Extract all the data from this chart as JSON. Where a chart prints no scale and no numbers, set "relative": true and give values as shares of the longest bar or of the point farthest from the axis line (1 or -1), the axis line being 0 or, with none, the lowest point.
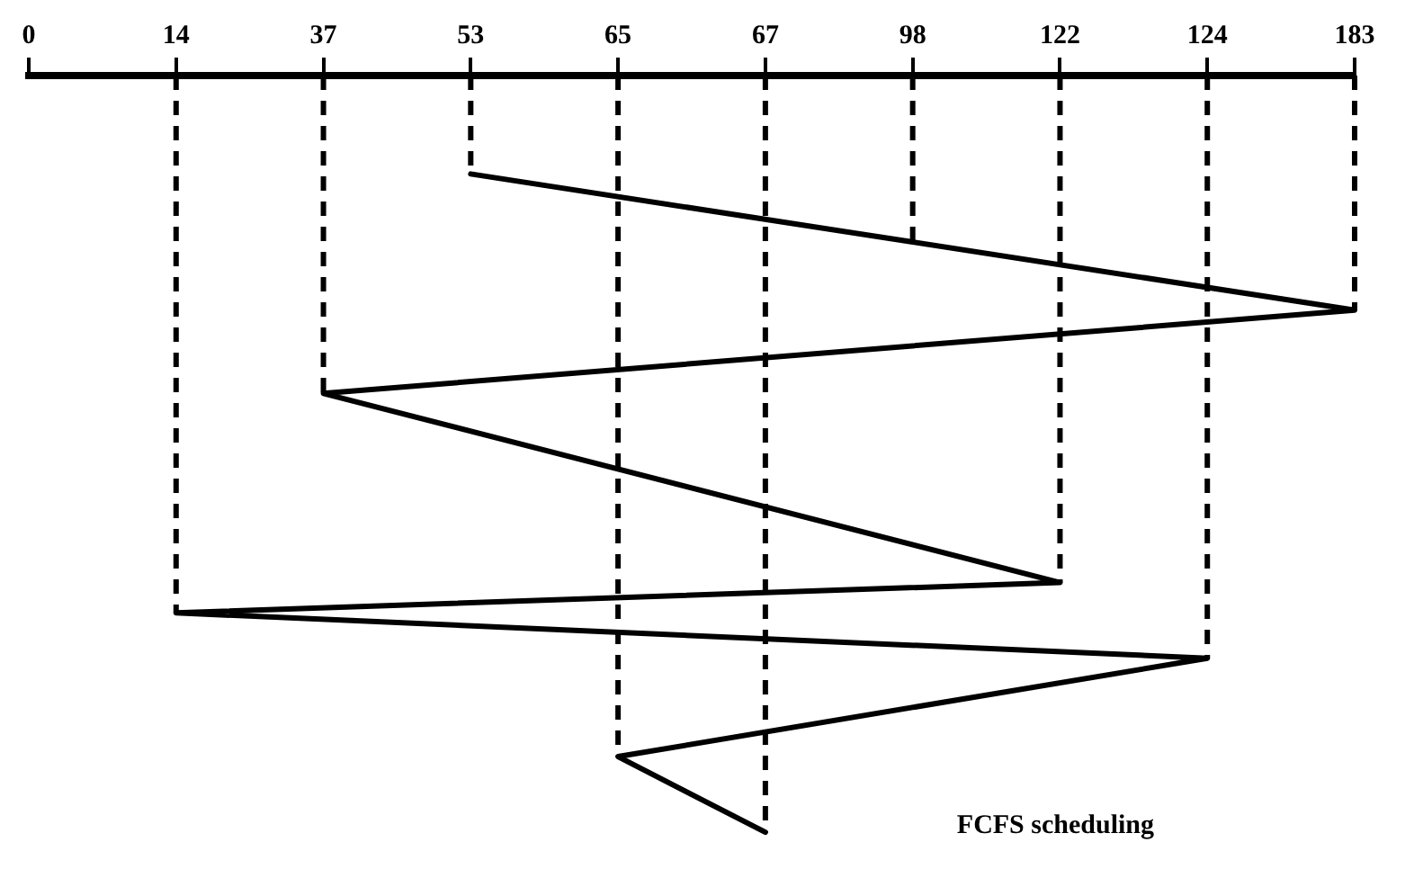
{
  "chart_data": {
    "type": "line",
    "categories": [
      "0",
      "14",
      "37",
      "53",
      "65",
      "67",
      "98",
      "122",
      "124",
      "183"
    ],
    "series": [
      {
        "color": "#000000",
        "x": [
          "53",
          "98",
          "183",
          "37",
          "122",
          "14",
          "124",
          "65",
          "67"
        ],
        "values": [
          -0.13,
          -0.22,
          -0.31,
          -0.42,
          -0.67,
          -0.71,
          -0.77,
          -0.9,
          -1
        ]
      }
    ],
    "relative": true,
    "marker": "none",
    "line_style": "solid",
    "grid": false,
    "legend": false,
    "ref_lines": [
      {
        "axis": "x",
        "value": "14",
        "line_style": "dashed"
      },
      {
        "axis": "x",
        "value": "37",
        "line_style": "dashed"
      },
      {
        "axis": "x",
        "value": "53",
        "line_style": "dashed"
      },
      {
        "axis": "x",
        "value": "65",
        "line_style": "dashed"
      },
      {
        "axis": "x",
        "value": "67",
        "line_style": "dashed"
      },
      {
        "axis": "x",
        "value": "98",
        "line_style": "dashed"
      },
      {
        "axis": "x",
        "value": "122",
        "line_style": "dashed"
      },
      {
        "axis": "x",
        "value": "124",
        "line_style": "dashed"
      },
      {
        "axis": "x",
        "value": "183",
        "line_style": "dashed"
      }
    ],
    "annotations": [
      "FCFS scheduling"
    ]
  }
}
